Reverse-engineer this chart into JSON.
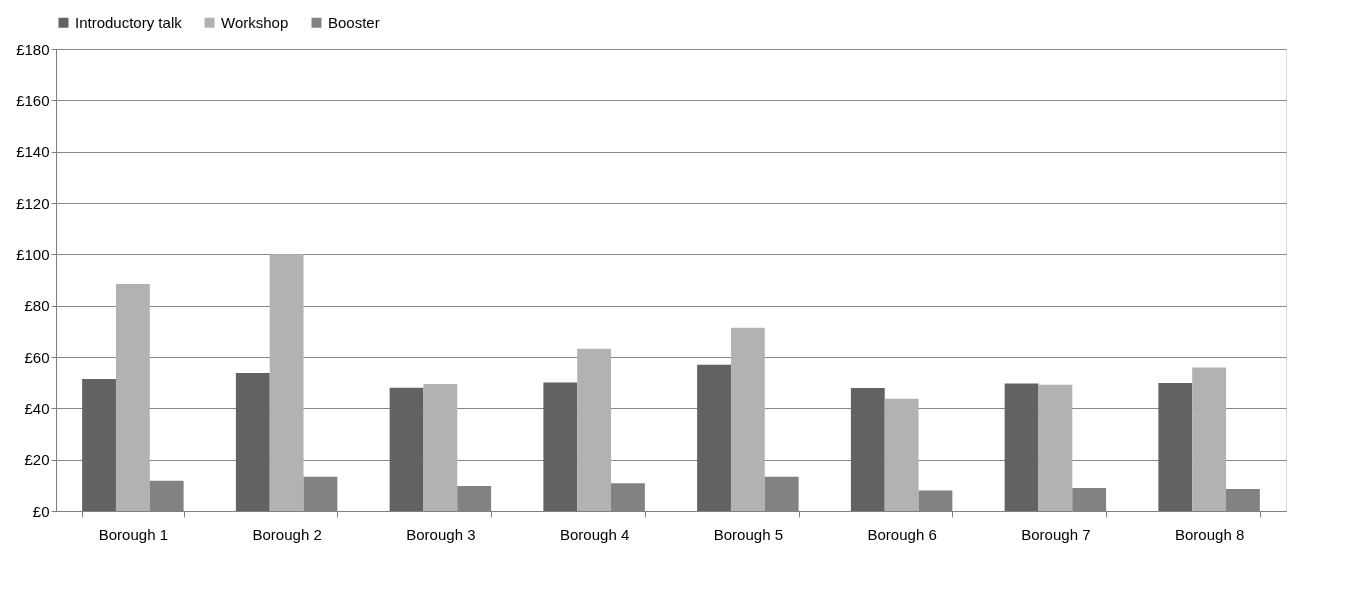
{
  "chart_data": {
    "type": "bar",
    "categories": [
      "Borough 1",
      "Borough 2",
      "Borough 3",
      "Borough 4",
      "Borough 5",
      "Borough 6",
      "Borough 7",
      "Borough 8"
    ],
    "series": [
      {
        "name": "Introductory talk",
        "color": "#626262",
        "values": [
          51.4,
          53.8,
          48.0,
          50.1,
          57.0,
          47.9,
          49.7,
          49.9
        ]
      },
      {
        "name": "Workshop",
        "color": "#b2b2b2",
        "values": [
          88.4,
          100,
          49.5,
          63.2,
          71.4,
          43.7,
          49.2,
          55.9
        ]
      },
      {
        "name": "Booster",
        "color": "#828282",
        "values": [
          11.8,
          13.3,
          9.7,
          10.8,
          13.3,
          8.0,
          9.0,
          8.6
        ]
      }
    ],
    "ylim": [
      0,
      180
    ],
    "yticks": [
      {
        "value": 0,
        "label": "£0"
      },
      {
        "value": 20,
        "label": "£20"
      },
      {
        "value": 40,
        "label": "£40"
      },
      {
        "value": 60,
        "label": "£60"
      },
      {
        "value": 80,
        "label": "£80"
      },
      {
        "value": 100,
        "label": "£100"
      },
      {
        "value": 120,
        "label": "£120"
      },
      {
        "value": 140,
        "label": "£140"
      },
      {
        "value": 160,
        "label": "£160"
      },
      {
        "value": 180,
        "label": "£180"
      }
    ],
    "grid": "y",
    "legend": "top"
  }
}
